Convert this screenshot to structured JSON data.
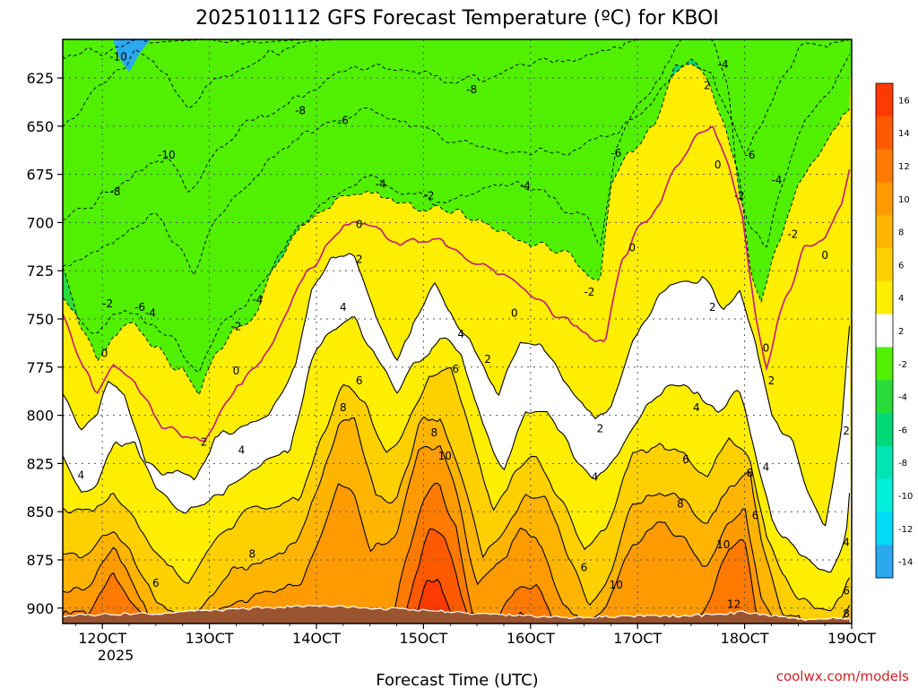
{
  "chart_data": {
    "type": "heatmap",
    "title": "2025101112 GFS Forecast Temperature (ºC) for KBOI",
    "xlabel": "Forecast Time (UTC)",
    "ylabel": "",
    "x_ticks": [
      "12OCT",
      "13OCT",
      "14OCT",
      "15OCT",
      "16OCT",
      "17OCT",
      "18OCT",
      "19OCT"
    ],
    "x_tick_sublabel": "2025",
    "x_range_days": [
      11.63,
      19.0
    ],
    "y_ticks": [
      625,
      650,
      675,
      700,
      725,
      750,
      775,
      800,
      825,
      850,
      875,
      900
    ],
    "y_range_hpa": [
      605,
      908
    ],
    "grid": true,
    "colorbar": {
      "levels": [
        16,
        14,
        12,
        10,
        8,
        6,
        4,
        2,
        -2,
        -4,
        -6,
        -8,
        -10,
        -12,
        -14
      ],
      "colors": [
        "#ff3a00",
        "#ff5a00",
        "#ff7a00",
        "#ff9a00",
        "#ffb400",
        "#ffd000",
        "#ffee00",
        "#ffffff",
        "#50f000",
        "#28dc3c",
        "#00d878",
        "#00e4b4",
        "#00f0dc",
        "#00dcf8",
        "#2aa8f0"
      ]
    },
    "contour_labels": [
      {
        "t": 12.15,
        "p": 614,
        "v": "-10"
      },
      {
        "t": 12.6,
        "p": 665,
        "v": "-10"
      },
      {
        "t": 12.12,
        "p": 684,
        "v": "-8"
      },
      {
        "t": 13.85,
        "p": 642,
        "v": "-8"
      },
      {
        "t": 15.45,
        "p": 631,
        "v": "-8"
      },
      {
        "t": 14.25,
        "p": 647,
        "v": "-6"
      },
      {
        "t": 16.8,
        "p": 664,
        "v": "-6"
      },
      {
        "t": 18.05,
        "p": 665,
        "v": "-6"
      },
      {
        "t": 12.45,
        "p": 747,
        "v": "-4"
      },
      {
        "t": 13.45,
        "p": 740,
        "v": "-4"
      },
      {
        "t": 14.6,
        "p": 680,
        "v": "-4"
      },
      {
        "t": 15.95,
        "p": 681,
        "v": "-4"
      },
      {
        "t": 17.8,
        "p": 618,
        "v": "-4"
      },
      {
        "t": 18.3,
        "p": 678,
        "v": "-4"
      },
      {
        "t": 12.35,
        "p": 744,
        "v": "-6"
      },
      {
        "t": 12.05,
        "p": 742,
        "v": "-2"
      },
      {
        "t": 13.25,
        "p": 754,
        "v": "-2"
      },
      {
        "t": 15.05,
        "p": 686,
        "v": "-2"
      },
      {
        "t": 16.55,
        "p": 736,
        "v": "-2"
      },
      {
        "t": 17.95,
        "p": 686,
        "v": "-2"
      },
      {
        "t": 18.45,
        "p": 706,
        "v": "-2"
      },
      {
        "t": 12.02,
        "p": 768,
        "v": "0"
      },
      {
        "t": 13.25,
        "p": 777,
        "v": "0"
      },
      {
        "t": 14.4,
        "p": 701,
        "v": "0"
      },
      {
        "t": 15.85,
        "p": 747,
        "v": "0"
      },
      {
        "t": 16.95,
        "p": 713,
        "v": "0"
      },
      {
        "t": 17.75,
        "p": 670,
        "v": "0"
      },
      {
        "t": 18.75,
        "p": 717,
        "v": "0"
      },
      {
        "t": 18.2,
        "p": 765,
        "v": "0"
      },
      {
        "t": 17.65,
        "p": 629,
        "v": "2"
      },
      {
        "t": 14.4,
        "p": 719,
        "v": "2"
      },
      {
        "t": 15.6,
        "p": 771,
        "v": "2"
      },
      {
        "t": 12.95,
        "p": 814,
        "v": "2"
      },
      {
        "t": 16.65,
        "p": 807,
        "v": "2"
      },
      {
        "t": 17.7,
        "p": 744,
        "v": "2"
      },
      {
        "t": 18.25,
        "p": 782,
        "v": "2"
      },
      {
        "t": 18.95,
        "p": 808,
        "v": "2"
      },
      {
        "t": 11.8,
        "p": 831,
        "v": "4"
      },
      {
        "t": 13.3,
        "p": 818,
        "v": "4"
      },
      {
        "t": 14.25,
        "p": 744,
        "v": "4"
      },
      {
        "t": 15.35,
        "p": 758,
        "v": "4"
      },
      {
        "t": 16.6,
        "p": 832,
        "v": "4"
      },
      {
        "t": 17.55,
        "p": 796,
        "v": "4"
      },
      {
        "t": 18.2,
        "p": 827,
        "v": "4"
      },
      {
        "t": 18.95,
        "p": 866,
        "v": "4"
      },
      {
        "t": 12.5,
        "p": 887,
        "v": "6"
      },
      {
        "t": 14.4,
        "p": 782,
        "v": "6"
      },
      {
        "t": 15.3,
        "p": 776,
        "v": "6"
      },
      {
        "t": 16.5,
        "p": 879,
        "v": "6"
      },
      {
        "t": 17.45,
        "p": 823,
        "v": "6"
      },
      {
        "t": 18.1,
        "p": 852,
        "v": "6"
      },
      {
        "t": 18.95,
        "p": 891,
        "v": "6"
      },
      {
        "t": 13.4,
        "p": 872,
        "v": "8"
      },
      {
        "t": 14.25,
        "p": 796,
        "v": "8"
      },
      {
        "t": 15.1,
        "p": 809,
        "v": "8"
      },
      {
        "t": 17.4,
        "p": 846,
        "v": "8"
      },
      {
        "t": 18.05,
        "p": 830,
        "v": "8"
      },
      {
        "t": 18.95,
        "p": 903,
        "v": "8"
      },
      {
        "t": 15.2,
        "p": 821,
        "v": "10"
      },
      {
        "t": 16.8,
        "p": 888,
        "v": "10"
      },
      {
        "t": 17.8,
        "p": 867,
        "v": "10"
      },
      {
        "t": 17.9,
        "p": 898,
        "v": "12"
      }
    ]
  },
  "credit": "coolwx.com/models"
}
